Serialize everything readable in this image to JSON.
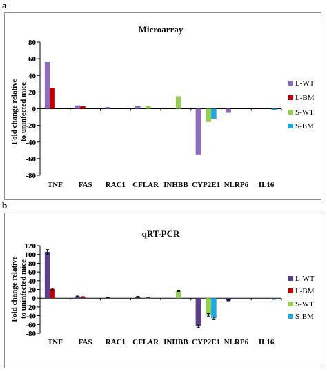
{
  "chart_data": [
    {
      "panel": "a",
      "type": "bar",
      "title": "Microarray",
      "ylabel": "Fold change relative to uninfected mice",
      "ylim": [
        -80,
        80
      ],
      "yticks": [
        80,
        60,
        40,
        20,
        0,
        -20,
        -40,
        -60,
        -80
      ],
      "grid": false,
      "error_bars": false,
      "legend_position": "right",
      "categories": [
        "TNF",
        "FAS",
        "RAC1",
        "CFLAR",
        "INHBB",
        "CYP2E1",
        "NLRP6",
        "IL16"
      ],
      "series": [
        {
          "name": "L-WT",
          "color": "#8e6bbf",
          "values": [
            56,
            4,
            2,
            3.5,
            0,
            -55,
            -5,
            0
          ]
        },
        {
          "name": "L-BM",
          "color": "#c00000",
          "values": [
            25,
            3,
            0,
            0,
            0,
            0,
            0,
            0
          ]
        },
        {
          "name": "S-WT",
          "color": "#92d050",
          "values": [
            0,
            0,
            0,
            3.5,
            15,
            -16,
            0,
            0
          ]
        },
        {
          "name": "S-BM",
          "color": "#1fa7e0",
          "values": [
            0,
            0,
            0,
            0,
            0,
            -12,
            0,
            -2
          ]
        }
      ]
    },
    {
      "panel": "b",
      "type": "bar",
      "title": "qRT-PCR",
      "ylabel": "Fold change relative to uninfected mice",
      "ylim": [
        -80,
        120
      ],
      "yticks": [
        120,
        100,
        80,
        60,
        40,
        20,
        0,
        -20,
        -40,
        -60,
        -80
      ],
      "grid": false,
      "error_bars": true,
      "legend_position": "right",
      "categories": [
        "TNF",
        "FAS",
        "RAC1",
        "CFLAR",
        "INHBB",
        "CYP2E1",
        "NLRP6",
        "IL16"
      ],
      "series": [
        {
          "name": "L-WT",
          "color": "#5b3f8c",
          "values": [
            106,
            4,
            1,
            3,
            0,
            -63,
            -5,
            0
          ],
          "errors": [
            5,
            1,
            0.5,
            1,
            0,
            4,
            1,
            0
          ]
        },
        {
          "name": "L-BM",
          "color": "#c00000",
          "values": [
            21,
            3,
            0,
            0,
            0,
            0,
            0,
            0
          ],
          "errors": [
            1.5,
            0.5,
            0,
            0,
            0,
            0,
            0,
            0
          ]
        },
        {
          "name": "S-WT",
          "color": "#92d050",
          "values": [
            0,
            0,
            0,
            2,
            17,
            -38,
            0,
            0
          ],
          "errors": [
            0,
            0,
            0,
            0.5,
            1.5,
            3,
            0,
            0
          ]
        },
        {
          "name": "S-BM",
          "color": "#1fa7e0",
          "values": [
            0,
            0,
            0,
            0,
            0,
            -46,
            0,
            -2
          ],
          "errors": [
            0,
            0,
            0,
            0,
            0,
            3,
            0,
            0.5
          ]
        }
      ]
    }
  ]
}
